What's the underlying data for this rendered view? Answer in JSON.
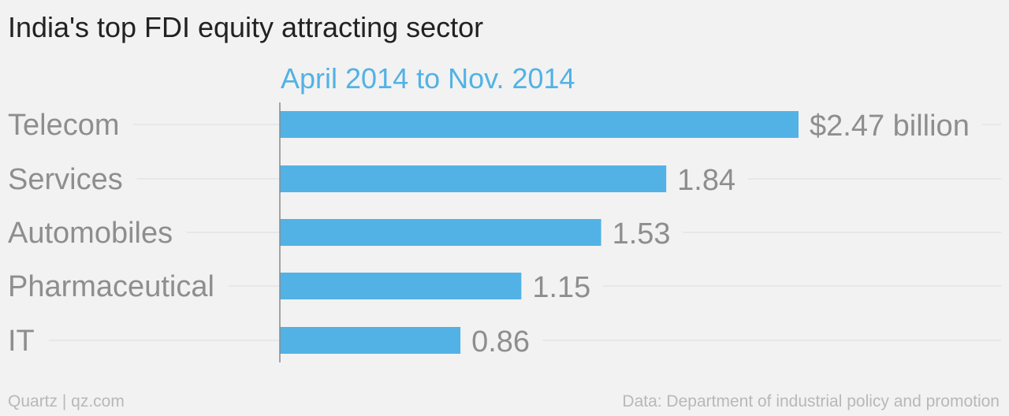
{
  "colors": {
    "bar": "#52b2e5",
    "subtitle": "#52b2e5",
    "category_text": "#8e8e8e",
    "value_text": "#8e8e8e",
    "gridline": "#e3e3e3",
    "axis": "#8a8a8a",
    "title": "#222222",
    "footer": "#b8b8b8",
    "background": "#f2f2f2"
  },
  "chart_data": {
    "type": "bar",
    "orientation": "horizontal",
    "title": "India's top FDI equity attracting sector",
    "subtitle": "April 2014 to Nov. 2014",
    "categories": [
      "Telecom",
      "Services",
      "Automobiles",
      "Pharmaceutical",
      "IT"
    ],
    "values": [
      2.47,
      1.84,
      1.53,
      1.15,
      0.86
    ],
    "value_labels": [
      "$2.47 billion",
      "1.84",
      "1.53",
      "1.15",
      "0.86"
    ],
    "unit": "billion USD",
    "xlim": [
      0,
      2.47
    ],
    "grid": true,
    "legend": "none"
  },
  "footer": {
    "credit": "Quartz | qz.com",
    "source": "Data: Department of industrial policy and promotion"
  }
}
